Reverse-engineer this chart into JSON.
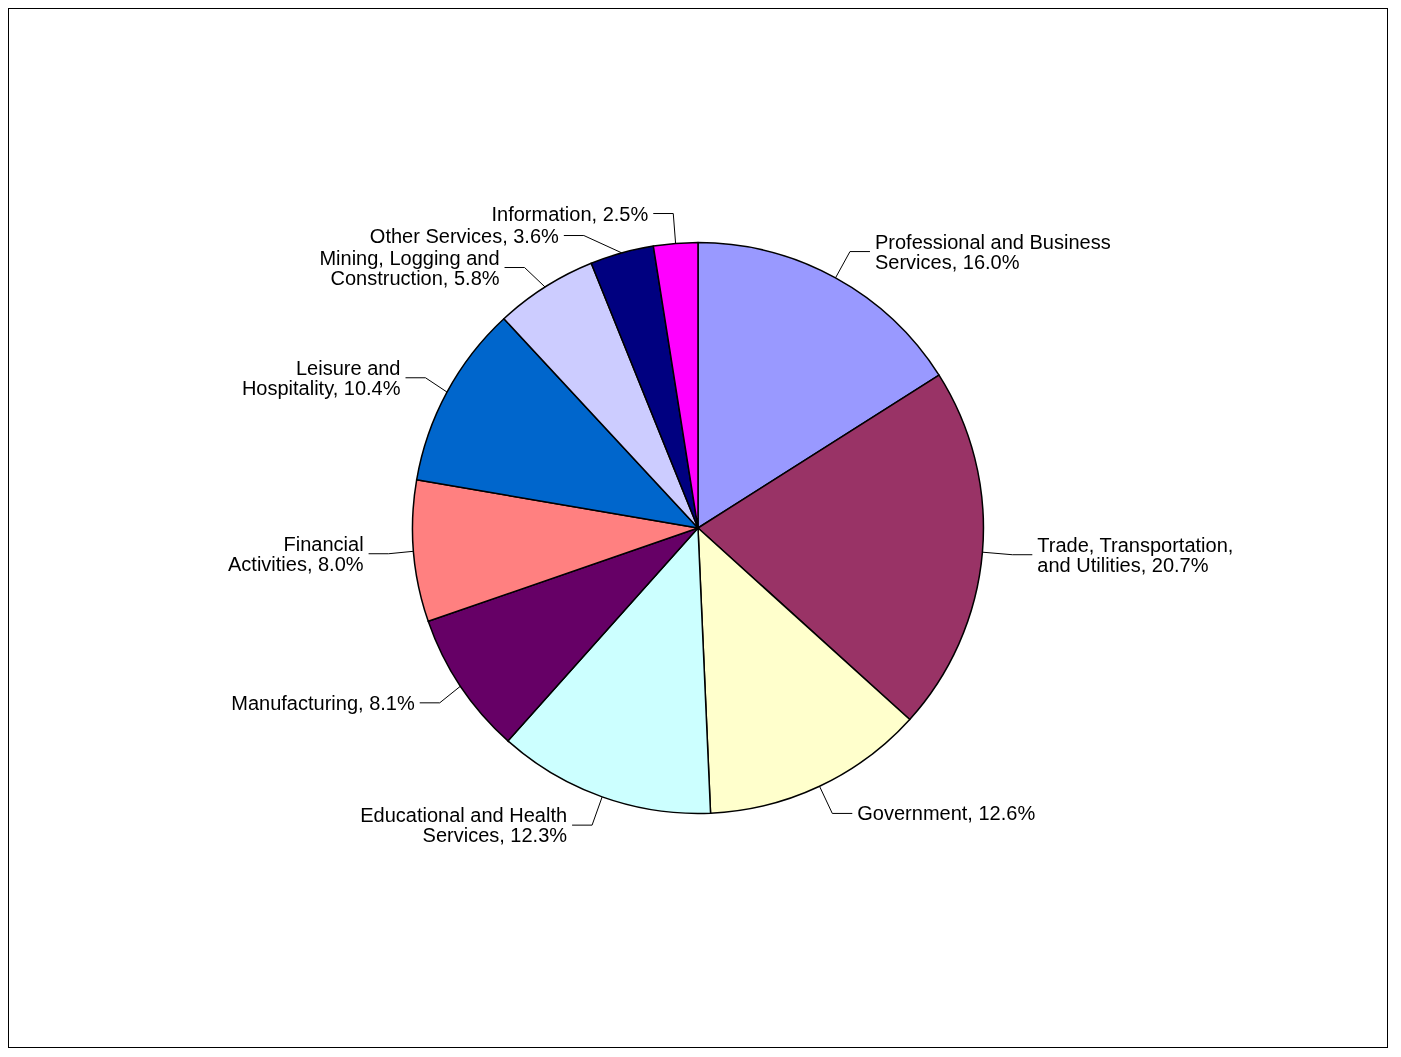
{
  "chart_data": {
    "type": "pie",
    "categories": [
      "Professional and Business Services",
      "Trade, Transportation, and Utilities",
      "Government",
      "Educational and Health Services",
      "Manufacturing",
      "Financial Activities",
      "Leisure and Hospitality",
      "Mining, Logging and Construction",
      "Other Services",
      "Information"
    ],
    "values": [
      16.0,
      20.7,
      12.6,
      12.3,
      8.1,
      8.0,
      10.4,
      5.8,
      3.6,
      2.5
    ],
    "colors": [
      "#9999ff",
      "#993366",
      "#ffffcc",
      "#ccffff",
      "#660066",
      "#ff8080",
      "#0066cc",
      "#ccccff",
      "#000080",
      "#ff00ff"
    ],
    "value_labels": [
      "16.0%",
      "20.7%",
      "12.6%",
      "12.3%",
      "8.1%",
      "8.0%",
      "10.4%",
      "5.8%",
      "3.6%",
      "2.5%"
    ],
    "legend": false
  }
}
